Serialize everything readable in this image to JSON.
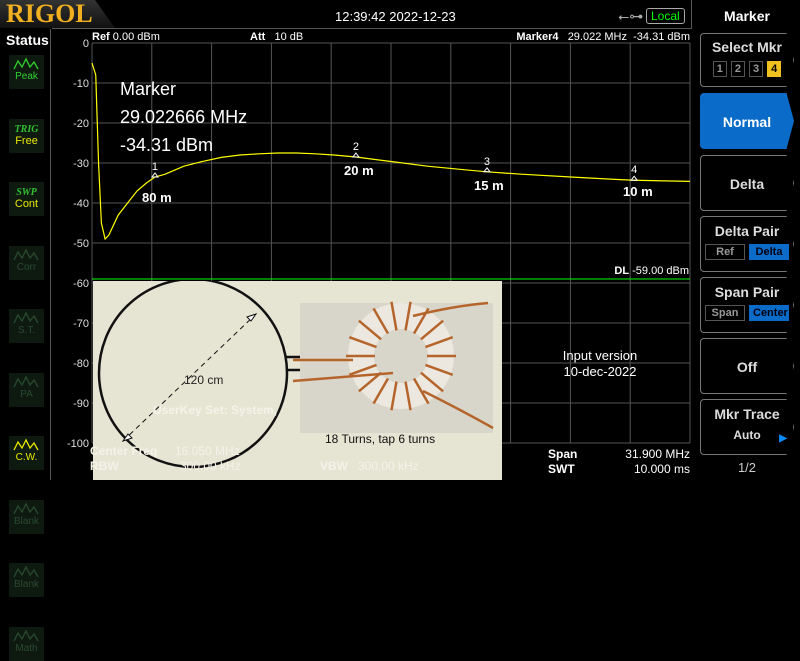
{
  "header": {
    "brand": "RIGOL",
    "datetime": "12:39:42 2022-12-23",
    "remote": "Local",
    "usb_icon": "usb-icon"
  },
  "status": {
    "title": "Status",
    "items": [
      {
        "top": "",
        "label": "Peak",
        "active": true
      },
      {
        "top": "TRIG",
        "label": "Free"
      },
      {
        "top": "SWP",
        "label": "Cont"
      },
      {
        "label": "Corr"
      },
      {
        "label": "S.T."
      },
      {
        "label": "PA"
      },
      {
        "label": "C.W.",
        "active": true
      },
      {
        "label": "Blank"
      },
      {
        "label": "Blank"
      },
      {
        "label": "Math"
      }
    ]
  },
  "plot": {
    "ref_label": "Ref",
    "ref_value": "0.00 dBm",
    "att_label": "Att",
    "att_value": "10 dB",
    "marker_label": "Marker4",
    "marker_freq": "29.022 MHz",
    "marker_level": "-34.31 dBm",
    "dl_label": "DL",
    "dl_value": "-59.00 dBm",
    "center_label": "Center Freq",
    "center_value": "16.050 MHz",
    "rbw_label": "RBW",
    "rbw_value": "300.00 kHz",
    "vbw_label": "VBW",
    "vbw_value": "300.00 kHz",
    "span_label": "Span",
    "span_value": "31.900 MHz",
    "swt_label": "SWT",
    "swt_value": "10.000 ms",
    "userkey": "UserKey Set:    System,"
  },
  "annotation": {
    "line1": "Marker",
    "line2": "29.022666 MHz",
    "line3": "-34.31 dBm",
    "bands": [
      "80 m",
      "20 m",
      "15 m",
      "10 m"
    ],
    "version1": "Input version",
    "version2": "10-dec-2022",
    "loop_label": "120 cm",
    "caption": "18 Turns, tap 6 turns"
  },
  "softkeys": {
    "title": "Marker",
    "select": "Select Mkr",
    "markers": [
      "1",
      "2",
      "3",
      "4"
    ],
    "normal": "Normal",
    "delta": "Delta",
    "delta_pair": "Delta Pair",
    "ref": "Ref",
    "delta_sub": "Delta",
    "span_pair": "Span Pair",
    "span": "Span",
    "center": "Center",
    "off": "Off",
    "mkr_trace": "Mkr Trace",
    "auto": "Auto",
    "page": "1/2"
  },
  "colors": {
    "trace": "#ffff00",
    "display_line": "#00ff00",
    "accent": "#0a6bc8",
    "marker_active": "#f0c020"
  },
  "chart_data": {
    "type": "line",
    "xlim": [
      0.1,
      32.0
    ],
    "ylim": [
      -100,
      0
    ],
    "y_ticks": [
      "0",
      "-10",
      "-20",
      "-30",
      "-40",
      "-50",
      "-60",
      "-70",
      "-80",
      "-90",
      "-100"
    ],
    "grid": true,
    "trace": {
      "x": [
        0.1,
        0.3,
        0.45,
        0.6,
        0.8,
        1.0,
        1.5,
        2.0,
        2.5,
        3.0,
        3.46,
        4,
        5,
        6,
        7,
        8,
        9,
        10,
        11,
        12,
        13,
        14.18,
        16,
        18,
        20,
        21.17,
        23,
        26,
        28,
        29.02,
        30,
        32
      ],
      "y": [
        -5,
        -8,
        -30,
        -45,
        -49,
        -48,
        -43,
        -40,
        -37,
        -35,
        -33.5,
        -32.8,
        -30.8,
        -29.6,
        -28.6,
        -28,
        -27.7,
        -27.5,
        -27.5,
        -27.7,
        -28,
        -28.5,
        -29.6,
        -30.8,
        -31.7,
        -32.2,
        -32.8,
        -33.6,
        -34.1,
        -34.31,
        -34.4,
        -34.6
      ]
    },
    "markers": [
      {
        "id": "1",
        "x": 3.46,
        "y": -33.5
      },
      {
        "id": "2",
        "x": 14.18,
        "y": -28.5
      },
      {
        "id": "3",
        "x": 21.17,
        "y": -32.2
      },
      {
        "id": "4",
        "x": 29.02,
        "y": -34.31
      }
    ],
    "display_line": -59
  }
}
